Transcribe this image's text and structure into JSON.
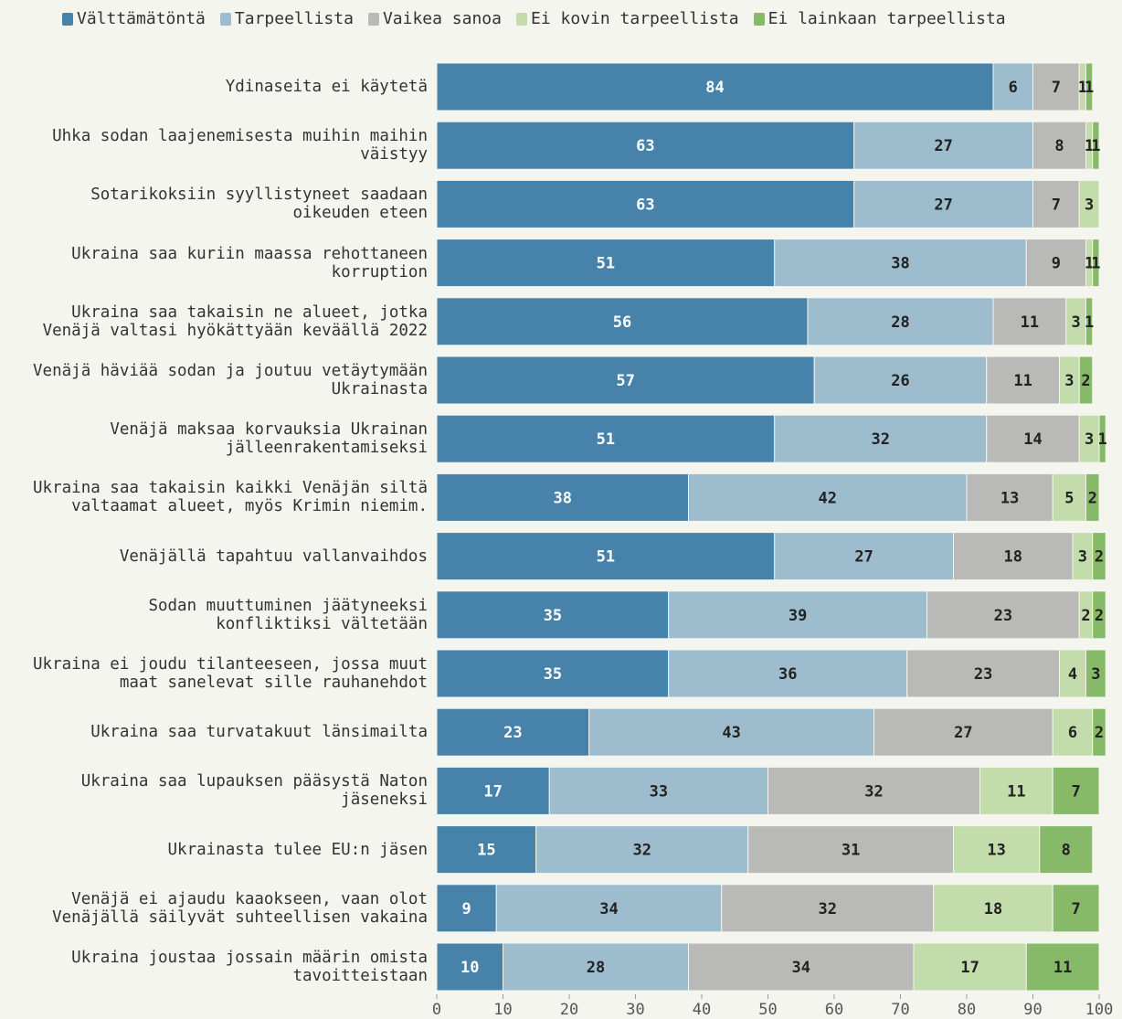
{
  "chart_data": {
    "type": "stacked-barh",
    "categories": [
      "Ydinaseita ei käytetä",
      "Uhka sodan laajenemisesta muihin maihin\nväistyy",
      "Sotarikoksiin syyllistyneet saadaan\noikeuden eteen",
      "Ukraina saa kuriin maassa rehottaneen\nkorruption",
      "Ukraina saa takaisin ne alueet, jotka\nVenäjä valtasi hyökättyään keväällä 2022",
      "Venäjä häviää sodan ja joutuu vetäytymään\nUkrainasta",
      "Venäjä maksaa korvauksia Ukrainan\njälleenrakentamiseksi",
      "Ukraina saa takaisin kaikki Venäjän siltä\nvaltaamat alueet, myös Krimin niemim.",
      "Venäjällä tapahtuu vallanvaihdos",
      "Sodan muuttuminen jäätyneeksi\nkonfliktiksi vältetään",
      "Ukraina ei joudu tilanteeseen, jossa muut\nmaat sanelevat sille rauhanehdot",
      "Ukraina saa turvatakuut länsimailta",
      "Ukraina saa lupauksen pääsystä Naton\njäseneksi",
      "Ukrainasta tulee EU:n jäsen",
      "Venäjä ei ajaudu kaaokseen, vaan olot\nVenäjällä säilyvät suhteellisen vakaina",
      "Ukraina joustaa jossain määrin omista\ntavoitteistaan"
    ],
    "series": [
      {
        "name": "Välttämätöntä",
        "color": "#4682a9",
        "values": [
          84,
          63,
          63,
          51,
          56,
          57,
          51,
          38,
          51,
          35,
          35,
          23,
          17,
          15,
          9,
          10
        ]
      },
      {
        "name": "Tarpeellista",
        "color": "#9dbccd",
        "values": [
          6,
          27,
          27,
          38,
          28,
          26,
          32,
          42,
          27,
          39,
          36,
          43,
          33,
          32,
          34,
          28
        ]
      },
      {
        "name": "Vaikea sanoa",
        "color": "#b9b9b7",
        "values": [
          7,
          8,
          7,
          9,
          11,
          11,
          14,
          13,
          18,
          23,
          23,
          27,
          32,
          31,
          32,
          34
        ]
      },
      {
        "name": "Ei kovin tarpeellista",
        "color": "#c3dcac",
        "values": [
          1,
          1,
          3,
          1,
          3,
          3,
          3,
          5,
          3,
          2,
          4,
          6,
          11,
          13,
          18,
          17
        ]
      },
      {
        "name": "Ei lainkaan tarpeellista",
        "color": "#86b968",
        "values": [
          1,
          1,
          0,
          1,
          1,
          2,
          1,
          2,
          2,
          2,
          3,
          2,
          7,
          8,
          7,
          11
        ]
      }
    ],
    "xlim": [
      0,
      100
    ],
    "xticks": [
      0,
      10,
      20,
      30,
      40,
      50,
      60,
      70,
      80,
      90,
      100
    ]
  }
}
